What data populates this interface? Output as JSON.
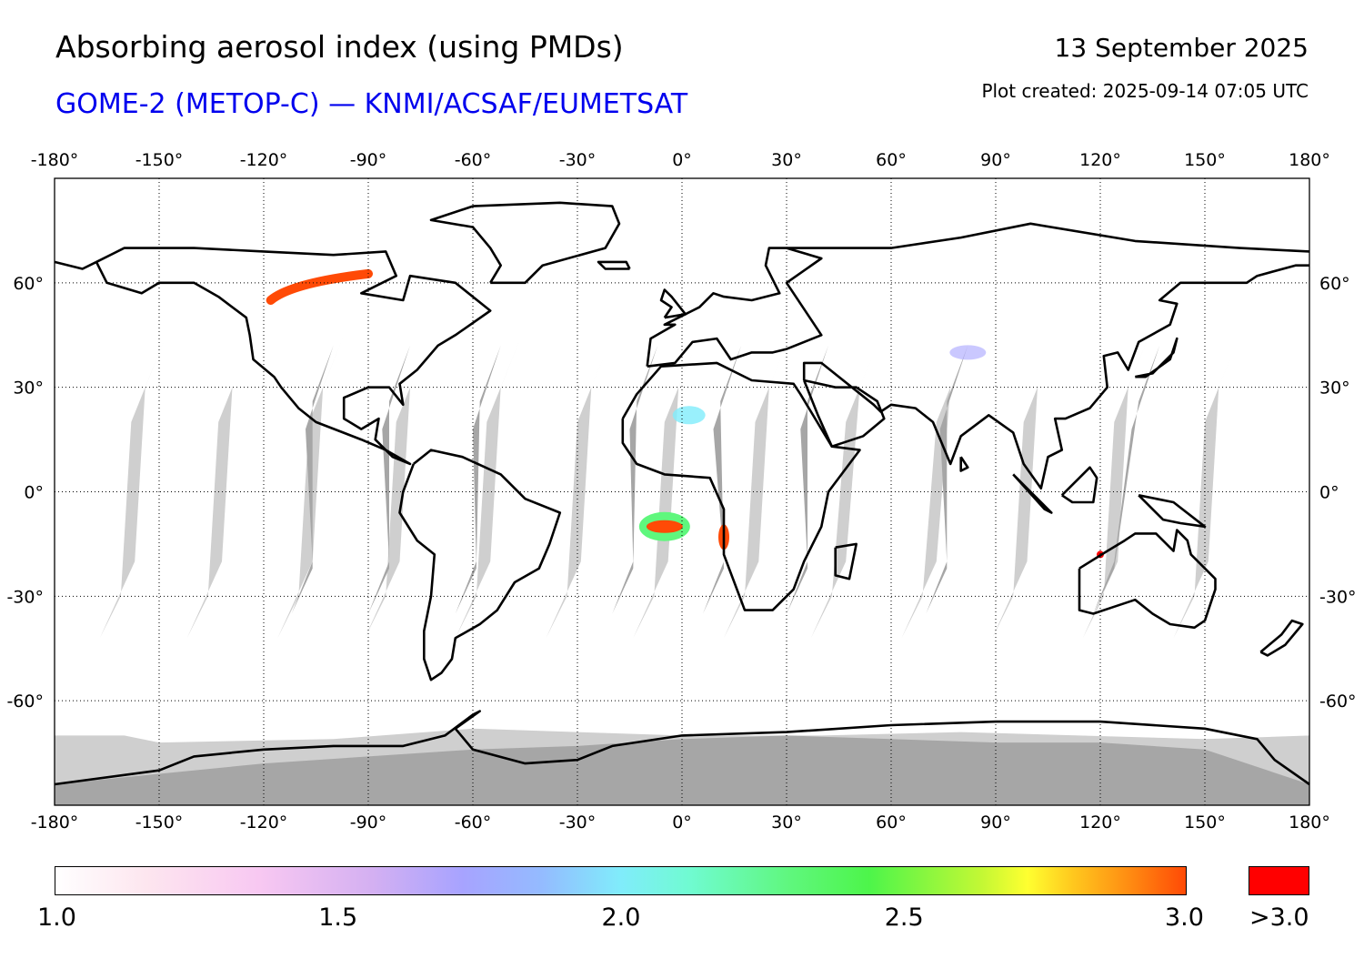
{
  "header": {
    "title": "Absorbing aerosol index (using PMDs)",
    "subtitle": "GOME-2 (METOP-C) — KNMI/ACSAF/EUMETSAT",
    "date": "13 September 2025",
    "created": "Plot created: 2025-09-14 07:05 UTC"
  },
  "map": {
    "projection": "equirectangular",
    "lon_range": [
      -180,
      180
    ],
    "lat_range": [
      -90,
      90
    ],
    "lon_ticks": [
      -180,
      -150,
      -120,
      -90,
      -60,
      -30,
      0,
      30,
      60,
      90,
      120,
      150,
      180
    ],
    "lon_tick_labels": [
      "-180°",
      "-150°",
      "-120°",
      "-90°",
      "-60°",
      "-30°",
      "0°",
      "30°",
      "60°",
      "90°",
      "120°",
      "150°",
      "180°"
    ],
    "lat_ticks": [
      60,
      30,
      0,
      -30,
      -60
    ],
    "lat_tick_labels": [
      "60°",
      "30°",
      "0°",
      "-30°",
      "-60°"
    ],
    "grid": "dotted",
    "colors": {
      "coastline": "#000000",
      "swath_gap": "#cfcfcf",
      "swath_gap_dark": "#a6a6a6",
      "no_data_polar": "#cfcfcf"
    }
  },
  "colorbar": {
    "tick_labels": [
      "1.0",
      "1.5",
      "2.0",
      "2.5",
      "3.0"
    ],
    "overflow_label": ">3.0",
    "overflow_color": "#ff0000",
    "range": [
      1.0,
      3.0
    ]
  }
}
